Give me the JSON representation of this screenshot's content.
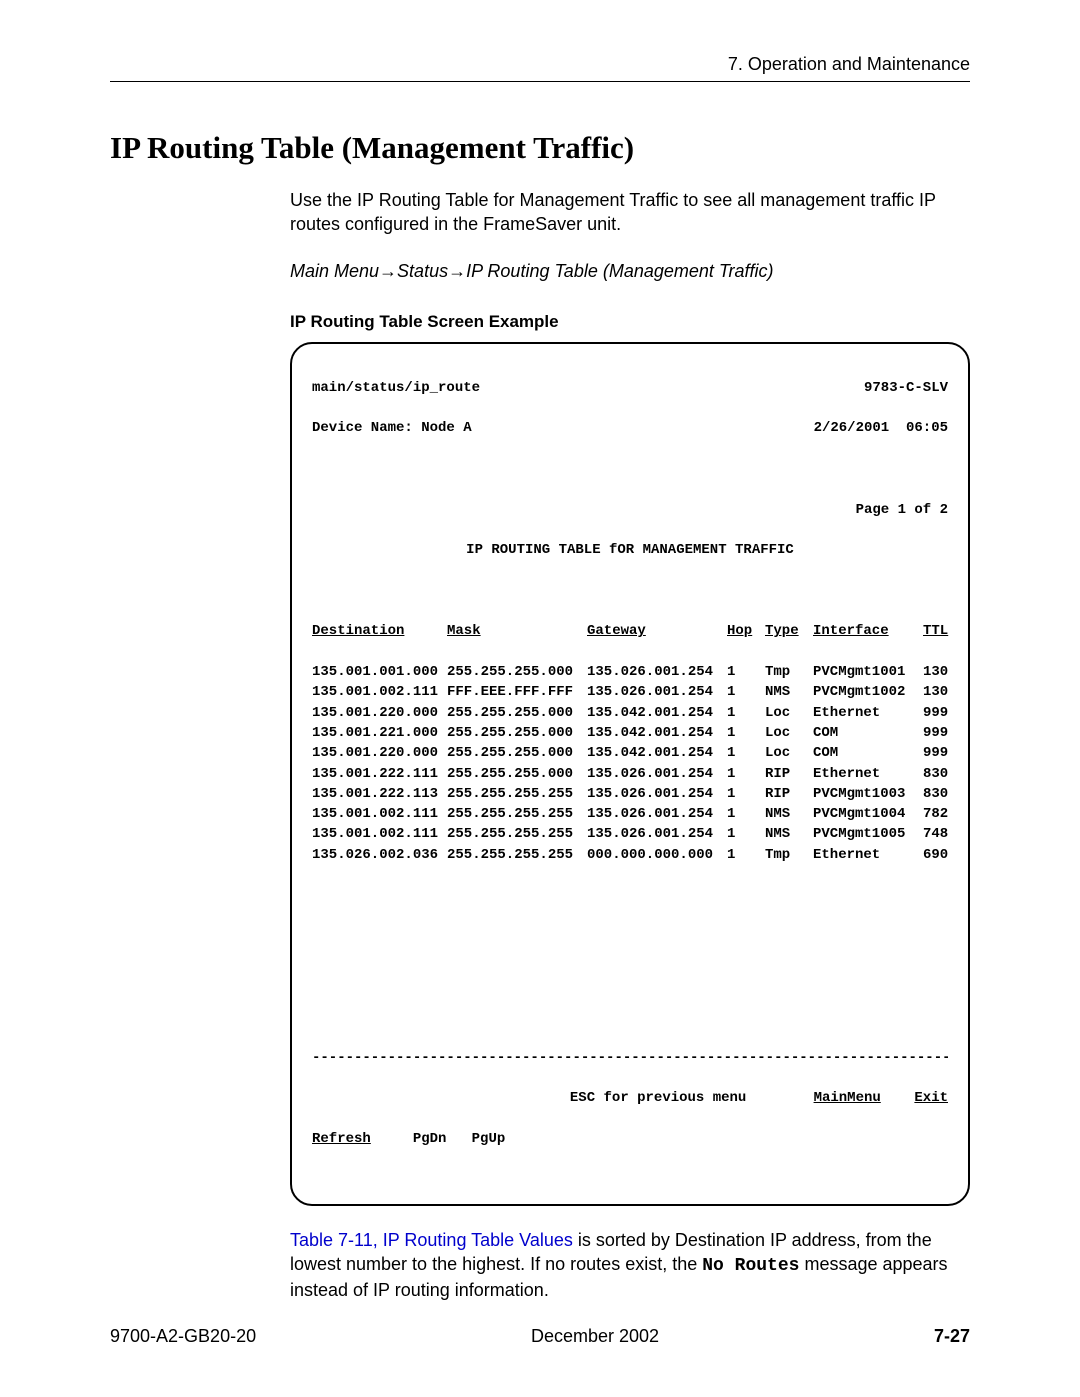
{
  "header": {
    "section": "7. Operation and Maintenance"
  },
  "title": "IP Routing Table (Management Traffic)",
  "intro": "Use the IP Routing Table for Management Traffic to see all management traffic IP routes configured in the FrameSaver unit.",
  "nav": {
    "p1": "Main Menu",
    "p2": "Status",
    "p3": "IP Routing Table (Management Traffic)"
  },
  "subhead": "IP Routing Table Screen Example",
  "term": {
    "path": "main/status/ip_route",
    "model": "9783-C-SLV",
    "device_label": "Device Name: Node A",
    "datetime": "2/26/2001  06:05",
    "page_info": "Page 1 of 2",
    "banner": "IP ROUTING TABLE fOR MANAGEMENT TRAFFIC",
    "columns": [
      "Destination",
      "Mask",
      "Gateway",
      "Hop",
      "Type",
      "Interface",
      "TTL"
    ],
    "rows": [
      [
        "135.001.001.000",
        "255.255.255.000",
        "135.026.001.254",
        "1",
        "Tmp",
        "PVCMgmt1001",
        "130"
      ],
      [
        "135.001.002.111",
        "FFF.EEE.FFF.FFF",
        "135.026.001.254",
        "1",
        "NMS",
        "PVCMgmt1002",
        "130"
      ],
      [
        "135.001.220.000",
        "255.255.255.000",
        "135.042.001.254",
        "1",
        "Loc",
        "Ethernet",
        "999"
      ],
      [
        "135.001.221.000",
        "255.255.255.000",
        "135.042.001.254",
        "1",
        "Loc",
        "COM",
        "999"
      ],
      [
        "135.001.220.000",
        "255.255.255.000",
        "135.042.001.254",
        "1",
        "Loc",
        "COM",
        "999"
      ],
      [
        "135.001.222.111",
        "255.255.255.000",
        "135.026.001.254",
        "1",
        "RIP",
        "Ethernet",
        "830"
      ],
      [
        "135.001.222.113",
        "255.255.255.255",
        "135.026.001.254",
        "1",
        "RIP",
        "PVCMgmt1003",
        "830"
      ],
      [
        "135.001.002.111",
        "255.255.255.255",
        "135.026.001.254",
        "1",
        "NMS",
        "PVCMgmt1004",
        "782"
      ],
      [
        "135.001.002.111",
        "255.255.255.255",
        "135.026.001.254",
        "1",
        "NMS",
        "PVCMgmt1005",
        "748"
      ],
      [
        "135.026.002.036",
        "255.255.255.255",
        "000.000.000.000",
        "1",
        "Tmp",
        "Ethernet",
        "690"
      ]
    ],
    "esc_hint": "ESC for previous menu",
    "menu_main": "MainMenu",
    "menu_exit": "Exit",
    "foot_refresh": "Refresh",
    "foot_pgdn": "PgDn",
    "foot_pgup": "PgUp",
    "dashes": "--------------------------------------------------------------------------------"
  },
  "after": {
    "link": "Table 7-11, IP Routing Table Values",
    "t1": " is sorted by Destination IP address, from the lowest number to the highest. If no routes exist, the ",
    "code": "No Routes",
    "t2": " message appears instead of IP routing information."
  },
  "footer": {
    "doc": "9700-A2-GB20-20",
    "date": "December 2002",
    "page": "7-27"
  }
}
